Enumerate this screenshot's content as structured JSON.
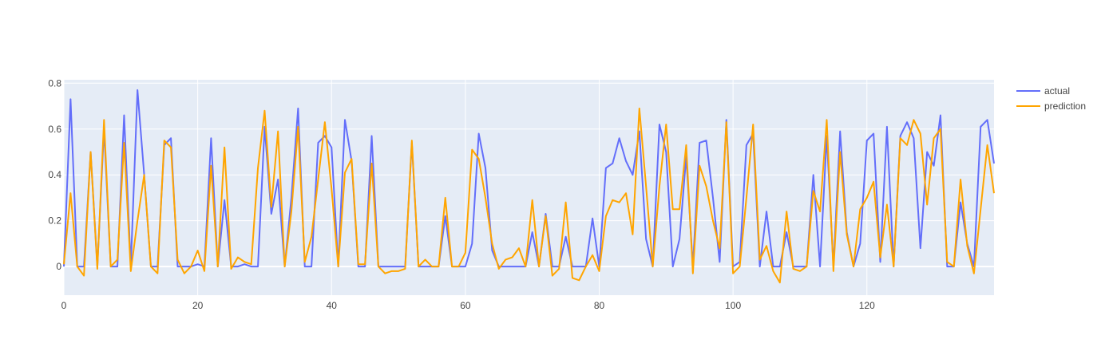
{
  "chart_data": {
    "type": "line",
    "title": "",
    "xlabel": "",
    "ylabel": "",
    "xlim": [
      0,
      139
    ],
    "ylim": [
      -0.125,
      0.815
    ],
    "x_ticks": [
      0,
      20,
      40,
      60,
      80,
      100,
      120
    ],
    "y_ticks": [
      0,
      0.2,
      0.4,
      0.6,
      0.8
    ],
    "grid": true,
    "legend_position": "top-right",
    "colors": {
      "plot_bg": "#e5ecf6",
      "grid": "#ffffff",
      "actual": "#636efa",
      "prediction": "#ffa500"
    },
    "series": [
      {
        "name": "actual",
        "values": [
          0.0,
          0.73,
          0.0,
          0.0,
          0.5,
          0.0,
          0.6,
          0.0,
          0.0,
          0.66,
          0.0,
          0.77,
          0.4,
          0.0,
          0.0,
          0.53,
          0.56,
          0.0,
          0.0,
          0.0,
          0.01,
          0.0,
          0.56,
          0.0,
          0.29,
          0.0,
          0.0,
          0.01,
          0.0,
          0.0,
          0.61,
          0.23,
          0.38,
          0.0,
          0.3,
          0.69,
          0.0,
          0.0,
          0.54,
          0.57,
          0.52,
          0.0,
          0.64,
          0.46,
          0.0,
          0.0,
          0.57,
          0.0,
          0.0,
          0.0,
          0.0,
          0.0,
          0.54,
          0.0,
          0.0,
          0.0,
          0.0,
          0.22,
          0.0,
          0.0,
          0.0,
          0.1,
          0.58,
          0.43,
          0.07,
          0.0,
          0.0,
          0.0,
          0.0,
          0.0,
          0.15,
          0.0,
          0.23,
          0.0,
          0.0,
          0.13,
          0.0,
          0.0,
          0.0,
          0.21,
          0.0,
          0.43,
          0.45,
          0.56,
          0.46,
          0.4,
          0.59,
          0.12,
          0.0,
          0.62,
          0.5,
          0.0,
          0.12,
          0.48,
          0.0,
          0.54,
          0.55,
          0.3,
          0.02,
          0.64,
          0.0,
          0.02,
          0.53,
          0.58,
          0.0,
          0.24,
          0.0,
          0.0,
          0.15,
          0.0,
          0.0,
          0.0,
          0.4,
          0.0,
          0.57,
          0.0,
          0.59,
          0.15,
          0.0,
          0.1,
          0.55,
          0.58,
          0.02,
          0.61,
          0.0,
          0.57,
          0.63,
          0.56,
          0.08,
          0.5,
          0.44,
          0.66,
          0.0,
          0.0,
          0.28,
          0.1,
          0.0,
          0.61,
          0.64,
          0.45
        ]
      },
      {
        "name": "prediction",
        "values": [
          0.01,
          0.32,
          0.0,
          -0.04,
          0.5,
          -0.01,
          0.64,
          0.0,
          0.03,
          0.54,
          -0.02,
          0.2,
          0.4,
          0.0,
          -0.03,
          0.55,
          0.52,
          0.03,
          -0.03,
          0.0,
          0.07,
          -0.02,
          0.44,
          0.0,
          0.52,
          -0.01,
          0.04,
          0.02,
          0.01,
          0.43,
          0.68,
          0.26,
          0.59,
          0.0,
          0.24,
          0.61,
          0.02,
          0.13,
          0.38,
          0.63,
          0.34,
          0.0,
          0.41,
          0.47,
          0.01,
          0.01,
          0.45,
          0.0,
          -0.03,
          -0.02,
          -0.02,
          -0.01,
          0.55,
          0.0,
          0.03,
          0.0,
          0.0,
          0.3,
          0.0,
          0.0,
          0.06,
          0.51,
          0.47,
          0.3,
          0.1,
          -0.01,
          0.03,
          0.04,
          0.08,
          0.0,
          0.29,
          0.0,
          0.22,
          -0.04,
          -0.01,
          0.28,
          -0.05,
          -0.06,
          0.0,
          0.05,
          -0.02,
          0.22,
          0.29,
          0.28,
          0.32,
          0.14,
          0.69,
          0.35,
          0.0,
          0.35,
          0.62,
          0.25,
          0.25,
          0.53,
          -0.03,
          0.44,
          0.35,
          0.2,
          0.08,
          0.63,
          -0.03,
          0.0,
          0.3,
          0.62,
          0.03,
          0.09,
          -0.02,
          -0.07,
          0.24,
          -0.01,
          -0.02,
          0.0,
          0.33,
          0.24,
          0.64,
          -0.02,
          0.5,
          0.14,
          0.0,
          0.25,
          0.3,
          0.37,
          0.04,
          0.27,
          0.0,
          0.56,
          0.53,
          0.64,
          0.58,
          0.27,
          0.56,
          0.6,
          0.02,
          0.0,
          0.38,
          0.09,
          -0.03,
          0.25,
          0.53,
          0.32
        ]
      }
    ]
  }
}
